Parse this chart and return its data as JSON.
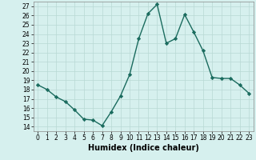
{
  "x": [
    0,
    1,
    2,
    3,
    4,
    5,
    6,
    7,
    8,
    9,
    10,
    11,
    12,
    13,
    14,
    15,
    16,
    17,
    18,
    19,
    20,
    21,
    22,
    23
  ],
  "y": [
    18.5,
    18.0,
    17.2,
    16.7,
    15.8,
    14.8,
    14.7,
    14.1,
    15.6,
    17.3,
    19.6,
    23.5,
    26.2,
    27.2,
    23.0,
    23.5,
    26.1,
    24.2,
    22.2,
    19.3,
    19.2,
    19.2,
    18.5,
    17.6
  ],
  "line_color": "#1a6b5e",
  "marker": "D",
  "marker_size": 2.2,
  "linewidth": 1.0,
  "xlabel": "Humidex (Indice chaleur)",
  "xlim": [
    -0.5,
    23.5
  ],
  "ylim": [
    13.5,
    27.5
  ],
  "yticks": [
    14,
    15,
    16,
    17,
    18,
    19,
    20,
    21,
    22,
    23,
    24,
    25,
    26,
    27
  ],
  "xticks": [
    0,
    1,
    2,
    3,
    4,
    5,
    6,
    7,
    8,
    9,
    10,
    11,
    12,
    13,
    14,
    15,
    16,
    17,
    18,
    19,
    20,
    21,
    22,
    23
  ],
  "bg_color": "#d6f0ee",
  "grid_color": "#b8d8d4",
  "tick_label_size": 5.5,
  "xlabel_size": 7.0
}
